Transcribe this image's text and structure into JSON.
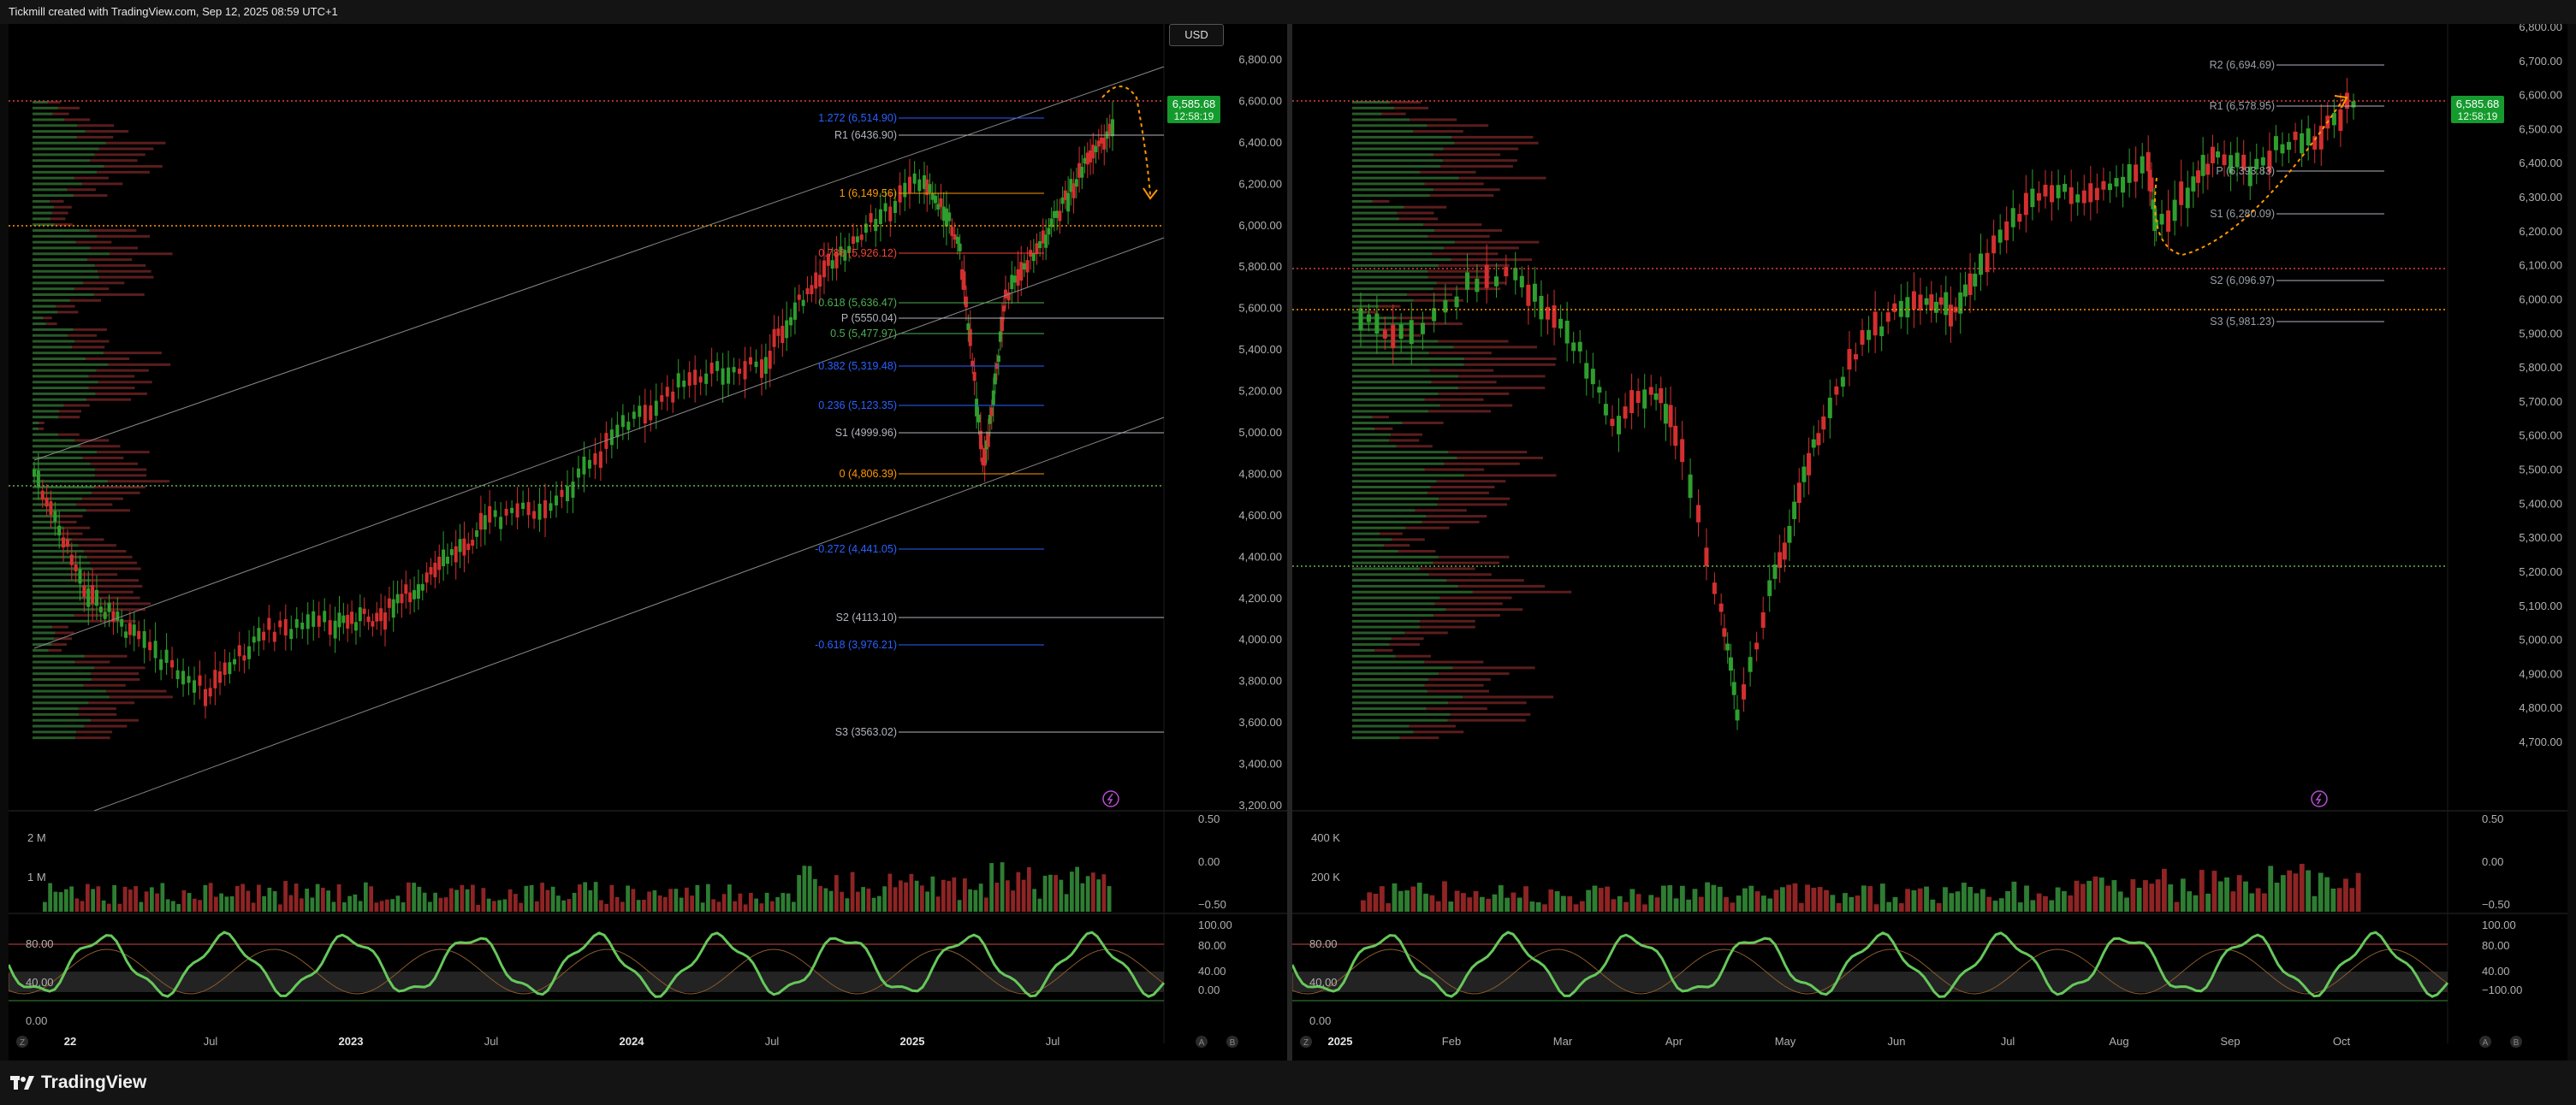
{
  "header": {
    "text": "Tickmill created with TradingView.com, Sep 12, 2025 08:59 UTC+1"
  },
  "footer": {
    "brand": "TradingView"
  },
  "colors": {
    "up": "#26a69a",
    "up_green": "#2e9e2e",
    "down": "#d32f2f",
    "price_tag": "#159a2e",
    "fib_orange": "#ff9800",
    "fib_blue": "#2962ff",
    "pivot_gray": "#b2b5be",
    "rsi_green": "#66c85a",
    "rsi_red": "#f06060",
    "dotted_red": "#e04040",
    "dotted_orange": "#ff9800",
    "dotted_green": "#6ab04c"
  },
  "left": {
    "currency": "USD",
    "price_last": "6,585.68",
    "countdown": "12:58:19",
    "price_axis": [
      "6,800.00",
      "6,600.00",
      "6,400.00",
      "6,200.00",
      "6,000.00",
      "5,800.00",
      "5,600.00",
      "5,400.00",
      "5,200.00",
      "5,000.00",
      "4,800.00",
      "4,600.00",
      "4,400.00",
      "4,200.00",
      "4,000.00",
      "3,800.00",
      "3,600.00",
      "3,400.00",
      "3,200.00"
    ],
    "levels": [
      {
        "label": "1.272 (6,514.90)",
        "color": "blue"
      },
      {
        "label": "R1 (6436.90)",
        "color": "gray"
      },
      {
        "label": "1 (6,149.56)",
        "color": "orange"
      },
      {
        "label": "0.786 (5,926.12)",
        "color": "red"
      },
      {
        "label": "0.618 (5,636.47)",
        "color": "green"
      },
      {
        "label": "P (5550.04)",
        "color": "gray"
      },
      {
        "label": "0.5 (5,477.97)",
        "color": "green"
      },
      {
        "label": "0.382 (5,319.48)",
        "color": "blue"
      },
      {
        "label": "0.236 (5,123.35)",
        "color": "blue"
      },
      {
        "label": "S1 (4999.96)",
        "color": "gray"
      },
      {
        "label": "0 (4,806.39)",
        "color": "orange"
      },
      {
        "label": "-0.272 (4,441.05)",
        "color": "blue"
      },
      {
        "label": "S2 (4113.10)",
        "color": "gray"
      },
      {
        "label": "-0.618 (3,976.21)",
        "color": "blue"
      },
      {
        "label": "S3 (3563.02)",
        "color": "gray"
      }
    ],
    "volume_axis": [
      "2 M",
      "1 M"
    ],
    "osc_axis_right": [
      "0.50",
      "0.00",
      "−0.50"
    ],
    "rsi_axis_left": [
      "80.00",
      "40.00",
      "0.00"
    ],
    "rsi_axis_right": [
      "100.00",
      "80.00",
      "40.00",
      "0.00"
    ],
    "time_axis": [
      "22",
      "Jul",
      "2023",
      "Jul",
      "2024",
      "Jul",
      "2025",
      "Jul"
    ]
  },
  "right": {
    "price_last": "6,585.68",
    "countdown": "12:58:19",
    "price_axis": [
      "6,800.00",
      "6,700.00",
      "6,600.00",
      "6,500.00",
      "6,400.00",
      "6,300.00",
      "6,200.00",
      "6,100.00",
      "6,000.00",
      "5,900.00",
      "5,800.00",
      "5,700.00",
      "5,600.00",
      "5,500.00",
      "5,400.00",
      "5,300.00",
      "5,200.00",
      "5,100.00",
      "5,000.00",
      "4,900.00",
      "4,800.00",
      "4,700.00"
    ],
    "levels": [
      {
        "label": "R2 (6,694.69)"
      },
      {
        "label": "R1 (6,578.95)"
      },
      {
        "label": "P (6,393.83)"
      },
      {
        "label": "S1 (6,280.09)"
      },
      {
        "label": "S2 (6,096.97)"
      },
      {
        "label": "S3 (5,981.23)"
      }
    ],
    "volume_axis": [
      "400 K",
      "200 K"
    ],
    "osc_axis_right": [
      "0.50",
      "0.00",
      "−0.50"
    ],
    "rsi_axis_left": [
      "80.00",
      "40.00",
      "0.00"
    ],
    "rsi_axis_right": [
      "100.00",
      "80.00",
      "40.00",
      "−100.00"
    ],
    "time_axis": [
      "2025",
      "Feb",
      "Mar",
      "Apr",
      "May",
      "Jun",
      "Jul",
      "Aug",
      "Sep",
      "Oct"
    ]
  },
  "corner_buttons": {
    "z": "Z",
    "a": "A",
    "b": "B"
  },
  "icons": [
    "lightning-icon",
    "tradingview-logo"
  ]
}
